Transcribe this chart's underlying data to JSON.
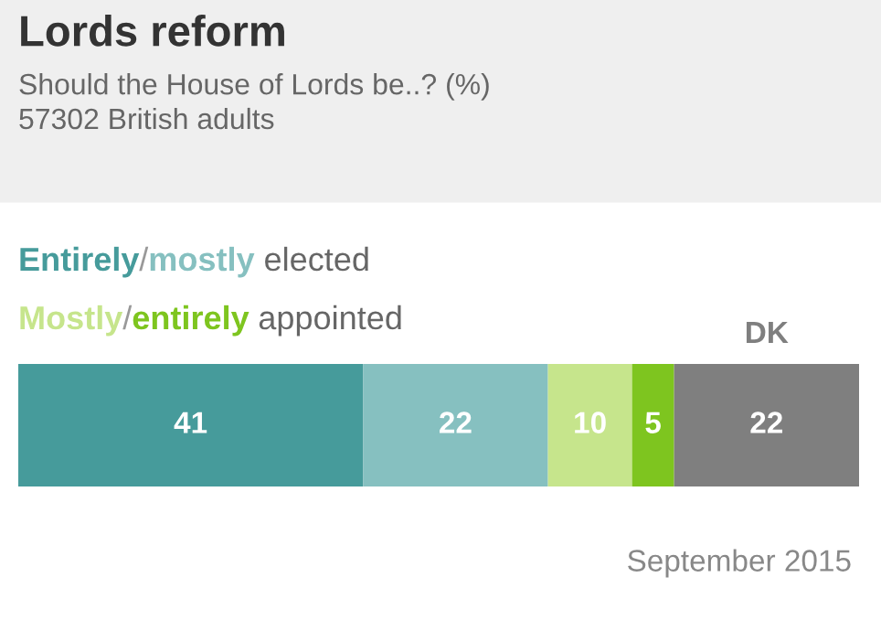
{
  "chart_data": {
    "type": "bar",
    "orientation": "horizontal",
    "stacked": true,
    "title": "Lords reform",
    "subtitle": "Should the House of Lords be..? (%)\n57302 British adults",
    "categories": [
      null
    ],
    "series": [
      {
        "name": "Entirely",
        "color": "#469b9b",
        "values": [
          41
        ]
      },
      {
        "name": "mostly",
        "color": "#86c0c0",
        "values": [
          22
        ]
      },
      {
        "name": "Mostly",
        "color": "#c6e58c",
        "values": [
          10
        ]
      },
      {
        "name": "entirely",
        "color": "#7ec51f",
        "values": [
          5
        ]
      },
      {
        "name": "DK",
        "color": "#7f7f7f",
        "values": [
          22
        ]
      }
    ],
    "data_labels": true,
    "legend": "top left",
    "annotations": [
      "/",
      "elected",
      "/",
      "appointed",
      "September 2015"
    ]
  }
}
